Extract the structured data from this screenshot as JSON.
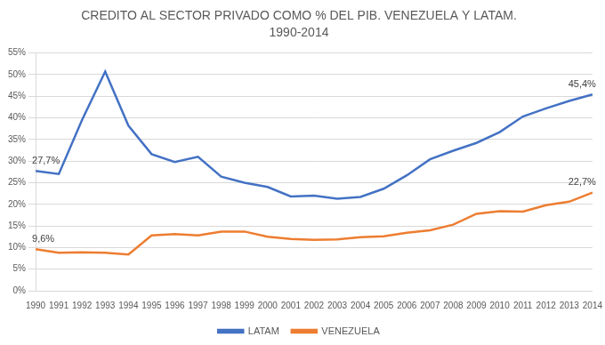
{
  "chart_data": {
    "type": "line",
    "title": "CREDITO AL SECTOR PRIVADO COMO % DEL PIB. VENEZUELA Y LATAM.",
    "subtitle": "1990-2014",
    "categories": [
      "1990",
      "1991",
      "1992",
      "1993",
      "1994",
      "1995",
      "1996",
      "1997",
      "1998",
      "1999",
      "2000",
      "2001",
      "2002",
      "2003",
      "2004",
      "2005",
      "2006",
      "2007",
      "2008",
      "2009",
      "2010",
      "2011",
      "2012",
      "2013",
      "2014"
    ],
    "series": [
      {
        "name": "LATAM",
        "color": "#4472c4",
        "values": [
          27.7,
          27.0,
          39.5,
          50.7,
          38.2,
          31.6,
          29.8,
          31.0,
          26.4,
          25.0,
          24.0,
          21.8,
          22.0,
          21.3,
          21.7,
          23.6,
          26.7,
          30.4,
          32.4,
          34.2,
          36.7,
          40.3,
          42.2,
          43.9,
          45.4
        ],
        "value_labels": [
          "27,7%",
          null,
          null,
          null,
          null,
          null,
          null,
          null,
          null,
          null,
          null,
          null,
          null,
          null,
          null,
          null,
          null,
          null,
          null,
          null,
          null,
          null,
          null,
          null,
          "45,4%"
        ]
      },
      {
        "name": "VENEZUELA",
        "color": "#ed7d31",
        "values": [
          9.6,
          8.8,
          8.9,
          8.8,
          8.4,
          12.8,
          13.1,
          12.8,
          13.7,
          13.7,
          12.5,
          12.0,
          11.8,
          11.9,
          12.4,
          12.6,
          13.4,
          14.0,
          15.3,
          17.8,
          18.4,
          18.3,
          19.8,
          20.6,
          22.7
        ],
        "value_labels": [
          "9,6%",
          null,
          null,
          null,
          null,
          null,
          null,
          null,
          null,
          null,
          null,
          null,
          null,
          null,
          null,
          null,
          null,
          null,
          null,
          null,
          null,
          null,
          null,
          null,
          "22,7%"
        ]
      }
    ],
    "ylim": [
      0,
      55
    ],
    "yticks": [
      {
        "value": 0,
        "label": "0%"
      },
      {
        "value": 5,
        "label": "5%"
      },
      {
        "value": 10,
        "label": "10%"
      },
      {
        "value": 15,
        "label": "15%"
      },
      {
        "value": 20,
        "label": "20%"
      },
      {
        "value": 25,
        "label": "25%"
      },
      {
        "value": 30,
        "label": "30%"
      },
      {
        "value": 35,
        "label": "35%"
      },
      {
        "value": 40,
        "label": "40%"
      },
      {
        "value": 45,
        "label": "45%"
      },
      {
        "value": 50,
        "label": "50%"
      },
      {
        "value": 55,
        "label": "55%"
      }
    ],
    "grid": true,
    "legend": "bottom",
    "marker": "none",
    "line_style": "solid"
  }
}
